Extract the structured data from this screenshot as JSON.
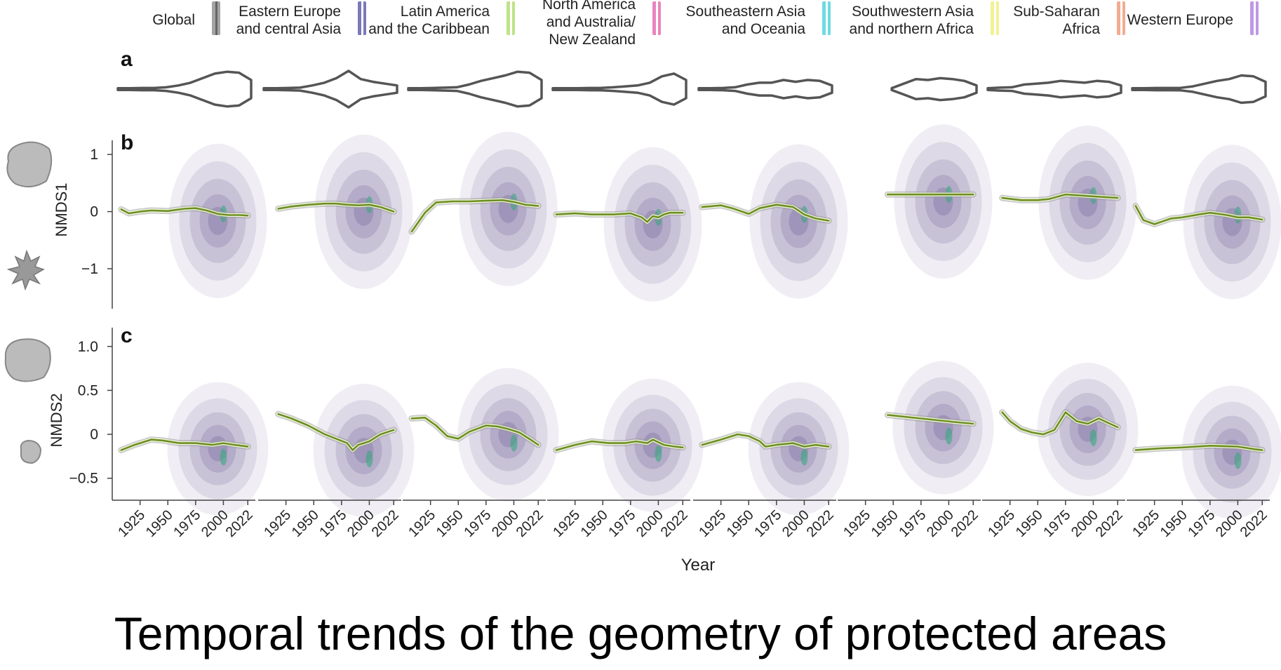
{
  "legend": [
    {
      "label": "Global",
      "color": "#9a9a9a"
    },
    {
      "label": "Eastern Europe\nand central Asia",
      "color": "#6e6ab3"
    },
    {
      "label": "Latin America\nand the Caribbean",
      "color": "#b9e07c"
    },
    {
      "label": "North America\nand Australia/\nNew Zealand",
      "color": "#e778b8"
    },
    {
      "label": "Southeastern Asia\nand Oceania",
      "color": "#5fd6e0"
    },
    {
      "label": "Southwestern Asia\nand northern Africa",
      "color": "#f2f08a"
    },
    {
      "label": "Sub-Saharan\nAfrica",
      "color": "#f0a487"
    },
    {
      "label": "Western Europe",
      "color": "#b78fe0"
    }
  ],
  "panel_labels": {
    "a": "a",
    "b": "b",
    "c": "c"
  },
  "caption": "Temporal trends of the geometry of protected areas",
  "chart_data": {
    "type": "line",
    "xlabel": "Year",
    "x_ticks": [
      "1925",
      "1950",
      "1975",
      "2000",
      "2022"
    ],
    "xlim": [
      1905,
      2025
    ],
    "panels": {
      "b": {
        "ylabel": "NMDS1",
        "ylim": [
          -1.7,
          1.15
        ],
        "y_ticks": [
          1,
          0,
          -1
        ]
      },
      "c": {
        "ylabel": "NMDS2",
        "ylim": [
          -0.75,
          1.15
        ],
        "y_ticks": [
          "1.0",
          "0.5",
          "0",
          "-0.5"
        ],
        "y_tick_values": [
          1.0,
          0.5,
          0,
          -0.5
        ]
      }
    },
    "series": [
      {
        "name": "Global",
        "nmds1": {
          "x": [
            1908,
            1915,
            1925,
            1935,
            1950,
            1965,
            1975,
            1985,
            1995,
            2005,
            2015,
            2022
          ],
          "y": [
            0.04,
            -0.03,
            0.0,
            0.02,
            0.01,
            0.05,
            0.06,
            0.02,
            -0.04,
            -0.06,
            -0.06,
            -0.07
          ]
        },
        "nmds2": {
          "x": [
            1908,
            1920,
            1935,
            1945,
            1960,
            1975,
            1990,
            2000,
            2010,
            2022
          ],
          "y": [
            -0.18,
            -0.12,
            -0.06,
            -0.07,
            -0.1,
            -0.1,
            -0.12,
            -0.1,
            -0.12,
            -0.14
          ]
        }
      },
      {
        "name": "Eastern Europe\nand central Asia",
        "nmds1": {
          "x": [
            1918,
            1930,
            1945,
            1960,
            1970,
            1980,
            1990,
            2000,
            2010,
            2022
          ],
          "y": [
            0.05,
            0.09,
            0.12,
            0.14,
            0.14,
            0.12,
            0.11,
            0.12,
            0.08,
            0.0
          ]
        },
        "nmds2": {
          "x": [
            1918,
            1930,
            1945,
            1960,
            1970,
            1980,
            1985,
            1990,
            2000,
            2010,
            2022
          ],
          "y": [
            0.23,
            0.18,
            0.1,
            0.0,
            -0.05,
            -0.1,
            -0.18,
            -0.12,
            -0.08,
            0.0,
            0.05
          ]
        }
      },
      {
        "name": "Latin America\nand the Caribbean",
        "nmds1": {
          "x": [
            1908,
            1920,
            1930,
            1945,
            1960,
            1975,
            1990,
            2000,
            2010,
            2022
          ],
          "y": [
            -0.35,
            -0.02,
            0.16,
            0.18,
            0.18,
            0.19,
            0.2,
            0.17,
            0.12,
            0.1
          ]
        },
        "nmds2": {
          "x": [
            1908,
            1920,
            1930,
            1940,
            1950,
            1960,
            1975,
            1985,
            1995,
            2005,
            2015,
            2022
          ],
          "y": [
            0.18,
            0.19,
            0.1,
            -0.02,
            -0.05,
            0.03,
            0.1,
            0.09,
            0.06,
            0.02,
            -0.06,
            -0.12
          ]
        }
      },
      {
        "name": "North America\nand Australia/\nNew Zealand",
        "nmds1": {
          "x": [
            1908,
            1925,
            1940,
            1960,
            1975,
            1985,
            1990,
            1995,
            2000,
            2005,
            2010,
            2022
          ],
          "y": [
            -0.05,
            -0.03,
            -0.05,
            -0.05,
            -0.03,
            -0.1,
            -0.18,
            -0.08,
            -0.1,
            -0.05,
            -0.02,
            -0.02
          ]
        },
        "nmds2": {
          "x": [
            1908,
            1925,
            1940,
            1955,
            1970,
            1980,
            1990,
            1995,
            2005,
            2015,
            2022
          ],
          "y": [
            -0.18,
            -0.12,
            -0.08,
            -0.1,
            -0.1,
            -0.08,
            -0.1,
            -0.06,
            -0.12,
            -0.14,
            -0.15
          ]
        }
      },
      {
        "name": "Southeastern Asia\nand Oceania",
        "nmds1": {
          "x": [
            1908,
            1925,
            1935,
            1950,
            1960,
            1975,
            1990,
            2000,
            2010,
            2022
          ],
          "y": [
            0.08,
            0.11,
            0.06,
            -0.04,
            0.06,
            0.12,
            0.08,
            -0.05,
            -0.12,
            -0.16
          ]
        },
        "nmds2": {
          "x": [
            1908,
            1925,
            1940,
            1950,
            1960,
            1965,
            1975,
            1990,
            2000,
            2010,
            2022
          ],
          "y": [
            -0.12,
            -0.06,
            0.0,
            -0.02,
            -0.08,
            -0.14,
            -0.12,
            -0.1,
            -0.14,
            -0.12,
            -0.14
          ]
        }
      },
      {
        "name": "Southwestern Asia\nand northern Africa",
        "nmds1": {
          "x": [
            1945,
            1960,
            1975,
            1990,
            2005,
            2022
          ],
          "y": [
            0.3,
            0.3,
            0.3,
            0.3,
            0.3,
            0.3
          ]
        },
        "nmds2": {
          "x": [
            1945,
            1960,
            1975,
            1990,
            2005,
            2022
          ],
          "y": [
            0.22,
            0.2,
            0.18,
            0.16,
            0.14,
            0.12
          ]
        }
      },
      {
        "name": "Sub-Saharan\nAfrica",
        "nmds1": {
          "x": [
            1918,
            1935,
            1950,
            1960,
            1975,
            1990,
            2005,
            2022
          ],
          "y": [
            0.24,
            0.2,
            0.2,
            0.22,
            0.3,
            0.28,
            0.26,
            0.24
          ]
        },
        "nmds2": {
          "x": [
            1918,
            1925,
            1935,
            1945,
            1955,
            1965,
            1975,
            1985,
            1995,
            2005,
            2015,
            2022
          ],
          "y": [
            0.25,
            0.15,
            0.06,
            0.02,
            0.0,
            0.05,
            0.25,
            0.15,
            0.12,
            0.18,
            0.12,
            0.08
          ]
        }
      },
      {
        "name": "Western Europe",
        "nmds1": {
          "x": [
            1908,
            1915,
            1925,
            1940,
            1950,
            1965,
            1975,
            1990,
            2000,
            2010,
            2022
          ],
          "y": [
            0.1,
            -0.15,
            -0.22,
            -0.12,
            -0.1,
            -0.05,
            -0.02,
            -0.06,
            -0.1,
            -0.1,
            -0.14
          ]
        },
        "nmds2": {
          "x": [
            1908,
            1930,
            1950,
            1975,
            2000,
            2015,
            2022
          ],
          "y": [
            -0.18,
            -0.16,
            -0.15,
            -0.13,
            -0.14,
            -0.17,
            -0.18
          ]
        }
      }
    ]
  }
}
